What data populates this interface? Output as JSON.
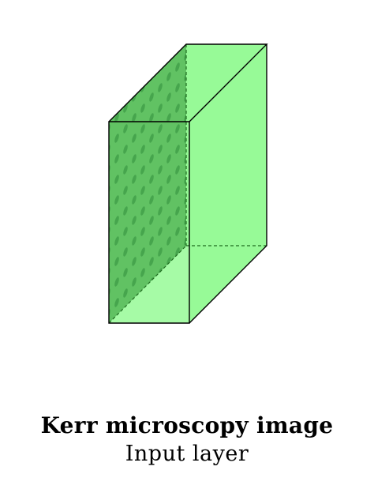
{
  "figure": {
    "title": "Kerr microscopy image",
    "subtitle": "Input layer"
  },
  "colors": {
    "box_fill": "#97fa97",
    "image_face_fill": "#61c263",
    "domain_spot": "#2f8e3a",
    "edge": "#000000",
    "hidden_edge": "#1e6b1e",
    "background": "#ffffff"
  }
}
